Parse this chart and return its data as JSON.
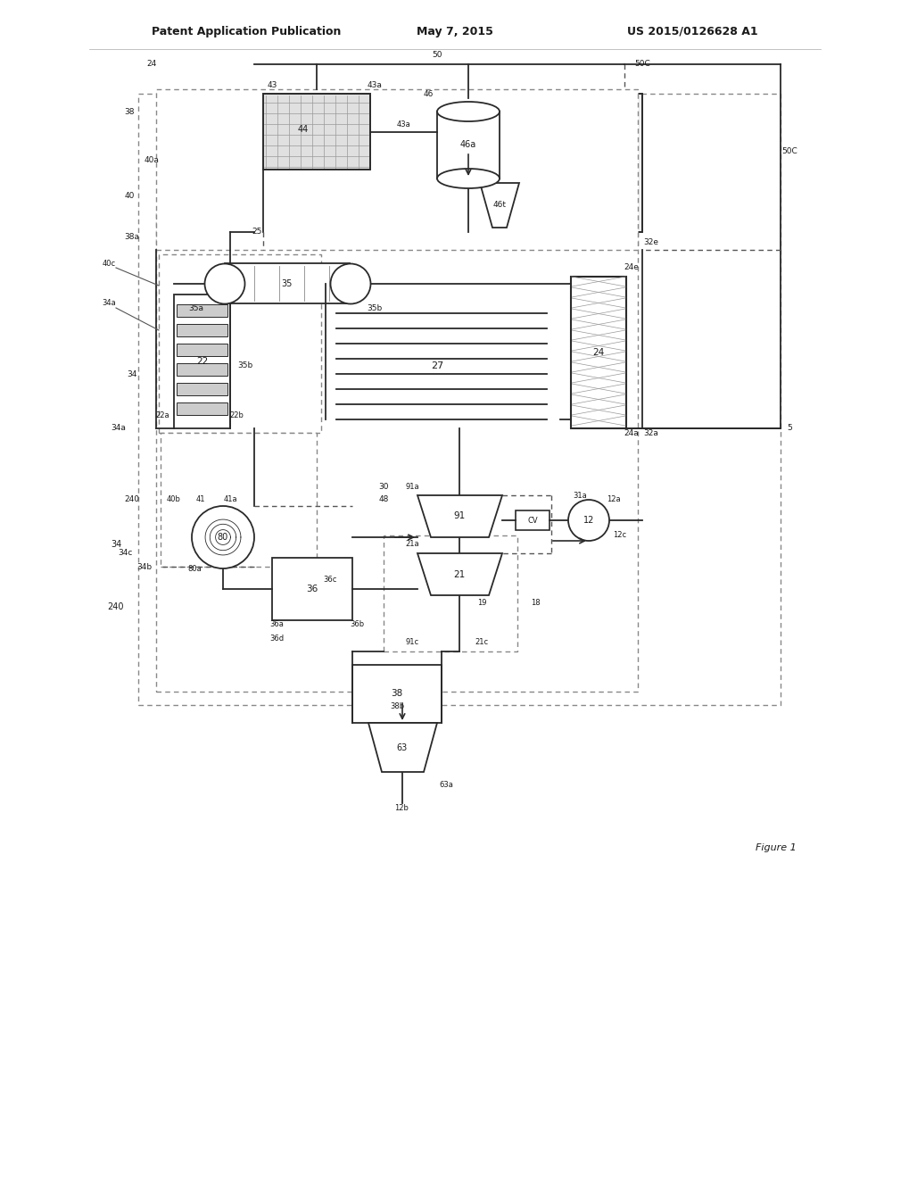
{
  "header_left": "Patent Application Publication",
  "header_center": "May 7, 2015",
  "header_right": "US 2015/0126628 A1",
  "footer_text": "Figure 1",
  "bg_color": "#ffffff",
  "line_color": "#2a2a2a",
  "dashed_color": "#555555",
  "text_color": "#1a1a1a"
}
